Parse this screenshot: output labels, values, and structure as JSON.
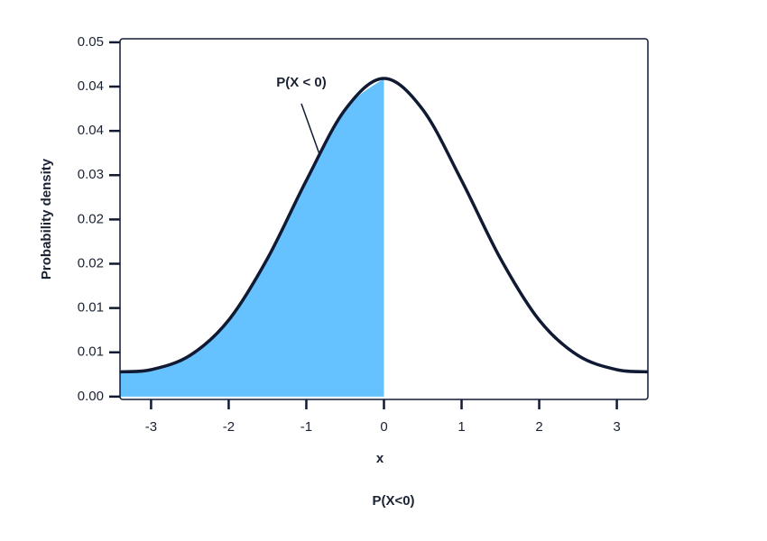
{
  "chart_data": {
    "type": "density",
    "title": "P(X<0)",
    "xlabel": "x",
    "ylabel": "Probability density",
    "annotation": "P(X < 0)",
    "x": [
      -3.4,
      -3,
      -2.5,
      -2,
      -1.5,
      -1,
      -0.5,
      0,
      0.5,
      1,
      1.5,
      2,
      2.5,
      3,
      3.4
    ],
    "values": [
      0.0035,
      0.0038,
      0.0058,
      0.0108,
      0.0195,
      0.0305,
      0.0405,
      0.0449,
      0.0405,
      0.0305,
      0.0195,
      0.0108,
      0.0058,
      0.0038,
      0.0035
    ],
    "color": "#111a33",
    "fill_color": "#66c2ff",
    "fill_until": 0,
    "xlim": [
      -3.4,
      3.4
    ],
    "xticks": [
      -3,
      -2,
      -1,
      0,
      1,
      2,
      3
    ],
    "ylim": [
      -0.0004,
      0.0505
    ],
    "yticks": [
      {
        "value": 0,
        "label": "0.00"
      },
      {
        "value": 0.00625,
        "label": "0.01"
      },
      {
        "value": 0.0125,
        "label": "0.01"
      },
      {
        "value": 0.01875,
        "label": "0.02"
      },
      {
        "value": 0.025,
        "label": "0.02"
      },
      {
        "value": 0.03125,
        "label": "0.03"
      },
      {
        "value": 0.0375,
        "label": "0.04"
      },
      {
        "value": 0.04375,
        "label": "0.04"
      },
      0.05
    ]
  }
}
